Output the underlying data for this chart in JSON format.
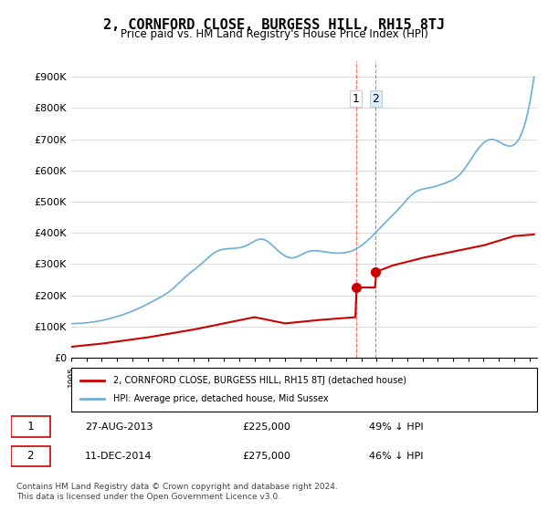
{
  "title": "2, CORNFORD CLOSE, BURGESS HILL, RH15 8TJ",
  "subtitle": "Price paid vs. HM Land Registry's House Price Index (HPI)",
  "legend_line1": "2, CORNFORD CLOSE, BURGESS HILL, RH15 8TJ (detached house)",
  "legend_line2": "HPI: Average price, detached house, Mid Sussex",
  "table_rows": [
    {
      "num": "1",
      "date": "27-AUG-2013",
      "price": "£225,000",
      "pct": "49% ↓ HPI"
    },
    {
      "num": "2",
      "date": "11-DEC-2014",
      "price": "£275,000",
      "pct": "46% ↓ HPI"
    }
  ],
  "footer": "Contains HM Land Registry data © Crown copyright and database right 2024.\nThis data is licensed under the Open Government Licence v3.0.",
  "sale1": {
    "year": 2013.65,
    "price": 225000
  },
  "sale2": {
    "year": 2014.94,
    "price": 275000
  },
  "hpi_color": "#6baed6",
  "sale_color": "#cc0000",
  "ylim": [
    0,
    950000
  ],
  "xlim_start": 1995.0,
  "xlim_end": 2025.5
}
